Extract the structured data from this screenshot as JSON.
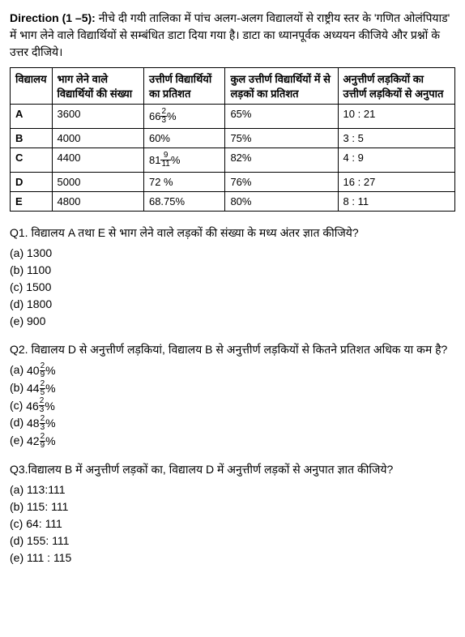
{
  "direction": {
    "label": "Direction (1 –5):",
    "text": " नीचे दी गयी तालिका में पांच अलग-अलग विद्यालयों से राष्ट्रीय स्तर के 'गणित ओलंपियाड' में भाग लेने वाले विद्यार्थियों से सम्बंधित डाटा दिया गया है। डाटा का ध्यानपूर्वक अध्ययन कीजिये और प्रश्नों के उत्तर दीजिये।"
  },
  "table": {
    "headers": [
      "विद्यालय",
      "भाग लेने वाले विद्यार्थियों की संख्या",
      "उत्तीर्ण विद्यार्थियों का प्रतिशत",
      "कुल उत्तीर्ण विद्यार्थियों में से लड़कों का प्रतिशत",
      "अनुत्तीर्ण लड़कियों का उत्तीर्ण लड़कियों से अनुपात"
    ],
    "rows": [
      {
        "school": "A",
        "count": "3600",
        "pass": {
          "whole": "66",
          "num": "2",
          "den": "3",
          "suffix": "%"
        },
        "boys": "65%",
        "ratio": "10 : 21"
      },
      {
        "school": "B",
        "count": "4000",
        "pass": {
          "plain": "60%"
        },
        "boys": "75%",
        "ratio": "3 : 5"
      },
      {
        "school": "C",
        "count": "4400",
        "pass": {
          "whole": "81",
          "num": "9",
          "den": "11",
          "suffix": "%"
        },
        "boys": "82%",
        "ratio": "4 : 9"
      },
      {
        "school": "D",
        "count": "5000",
        "pass": {
          "plain": "72 %"
        },
        "boys": "76%",
        "ratio": "16 : 27"
      },
      {
        "school": "E",
        "count": "4800",
        "pass": {
          "plain": "68.75%"
        },
        "boys": "80%",
        "ratio": "8 : 11"
      }
    ]
  },
  "q1": {
    "text": "Q1.  विद्यालय A तथा E से भाग लेने वाले लड़कों की संख्या के मध्य अंतर ज्ञात कीजिये?",
    "options": [
      "(a) 1300",
      "(b) 1100",
      "(c) 1500",
      "(d) 1800",
      "(e) 900"
    ]
  },
  "q2": {
    "text": "Q2.  विद्यालय D से अनुत्तीर्ण लड़कियां, विद्यालय B से अनुत्तीर्ण लड़कियों से कितने प्रतिशत अधिक या कम है?",
    "options": [
      {
        "label": "(a) ",
        "whole": "40",
        "num": "2",
        "den": "9",
        "suffix": "%"
      },
      {
        "label": "(b) ",
        "whole": "44",
        "num": "2",
        "den": "5",
        "suffix": "%"
      },
      {
        "label": "(c) ",
        "whole": "46",
        "num": "2",
        "den": "3",
        "suffix": "%"
      },
      {
        "label": "(d) ",
        "whole": "48",
        "num": "2",
        "den": "3",
        "suffix": "%"
      },
      {
        "label": "(e) ",
        "whole": "42",
        "num": "2",
        "den": "9",
        "suffix": "%"
      }
    ]
  },
  "q3": {
    "text": "Q3.विद्यालय B में अनुत्तीर्ण लड़कों का, विद्यालय D में अनुत्तीर्ण लड़कों से अनुपात ज्ञात कीजिये?",
    "options": [
      "(a) 113:111",
      "(b) 115: 111",
      "(c) 64: 111",
      "(d) 155: 111",
      "(e) 111 : 115"
    ]
  }
}
